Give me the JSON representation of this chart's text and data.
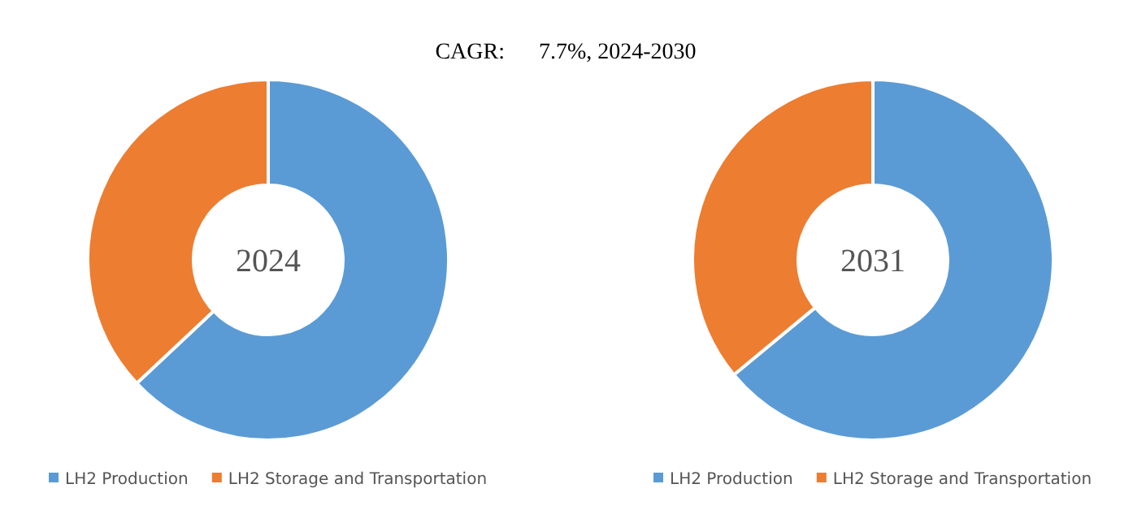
{
  "chart_data": [
    {
      "type": "other",
      "title": "CAGR:      7.7%, 2024-2030"
    },
    {
      "type": "donut",
      "categories": [
        "LH2 Production",
        "LH2 Storage and Transportation"
      ],
      "values": [
        63,
        37
      ],
      "colors": [
        "#5b9bd5",
        "#ed7d31"
      ],
      "annotations": [
        "2024"
      ],
      "legend": "bottom"
    },
    {
      "type": "donut",
      "categories": [
        "LH2 Production",
        "LH2 Storage and Transportation"
      ],
      "values": [
        64,
        36
      ],
      "colors": [
        "#5b9bd5",
        "#ed7d31"
      ],
      "annotations": [
        "2031"
      ],
      "legend": "bottom"
    }
  ]
}
